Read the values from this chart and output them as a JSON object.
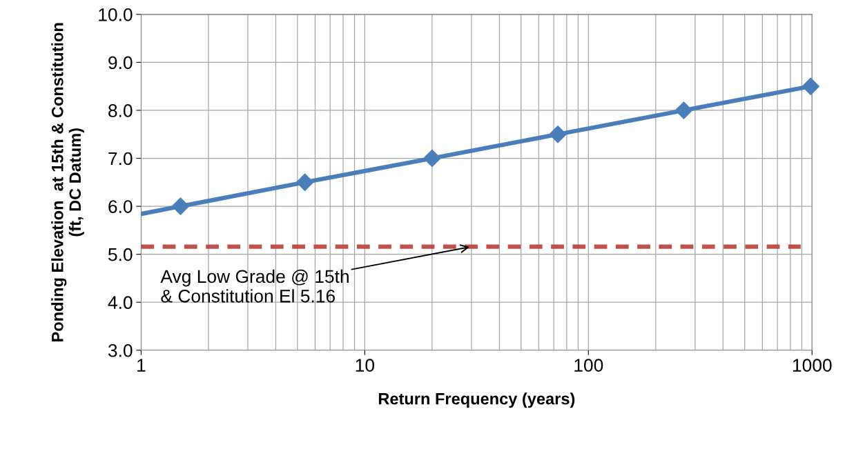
{
  "chart_data": {
    "type": "line",
    "xlabel": "Return Frequency (years)",
    "ylabel": "Ponding Elevation  at 15th & Constitution\n(ft, DC Datum)",
    "log": "x",
    "xlim": [
      1,
      1000
    ],
    "xticks": [
      1,
      10,
      100,
      1000
    ],
    "ylim": [
      3.0,
      10.0
    ],
    "yticks": [
      {
        "value": 3,
        "label": "3.0"
      },
      {
        "value": 4,
        "label": "4.0"
      },
      {
        "value": 5,
        "label": "5.0"
      },
      {
        "value": 6,
        "label": "6.0"
      },
      {
        "value": 7,
        "label": "7.0"
      },
      {
        "value": 8,
        "label": "8.0"
      },
      {
        "value": 9,
        "label": "9.0"
      },
      {
        "value": 10,
        "label": "10.0"
      }
    ],
    "grid": true,
    "series": [
      {
        "color": "#4a7ebb",
        "marker": "none",
        "line_style": "solid",
        "x": [
          1,
          1.5,
          5.4,
          20,
          73,
          267,
          986
        ],
        "values": [
          5.84,
          6.0,
          6.5,
          7.0,
          7.5,
          8.0,
          8.5
        ]
      },
      {
        "type": "scatter",
        "color": "#4a7ebb",
        "marker": "diamond",
        "x": [
          1.5,
          5.4,
          20,
          73,
          267,
          986
        ],
        "values": [
          6.0,
          6.5,
          7.0,
          7.5,
          8.0,
          8.5
        ]
      },
      {
        "color": "#c0504d",
        "marker": "none",
        "line_style": "dashed",
        "x": [
          1,
          890
        ],
        "values": [
          5.16,
          5.16
        ]
      }
    ],
    "annotations": [
      {
        "text": "Avg Low Grade @ 15th\n& Constitution El 5.16",
        "x": 30,
        "y": 5.16
      }
    ]
  }
}
